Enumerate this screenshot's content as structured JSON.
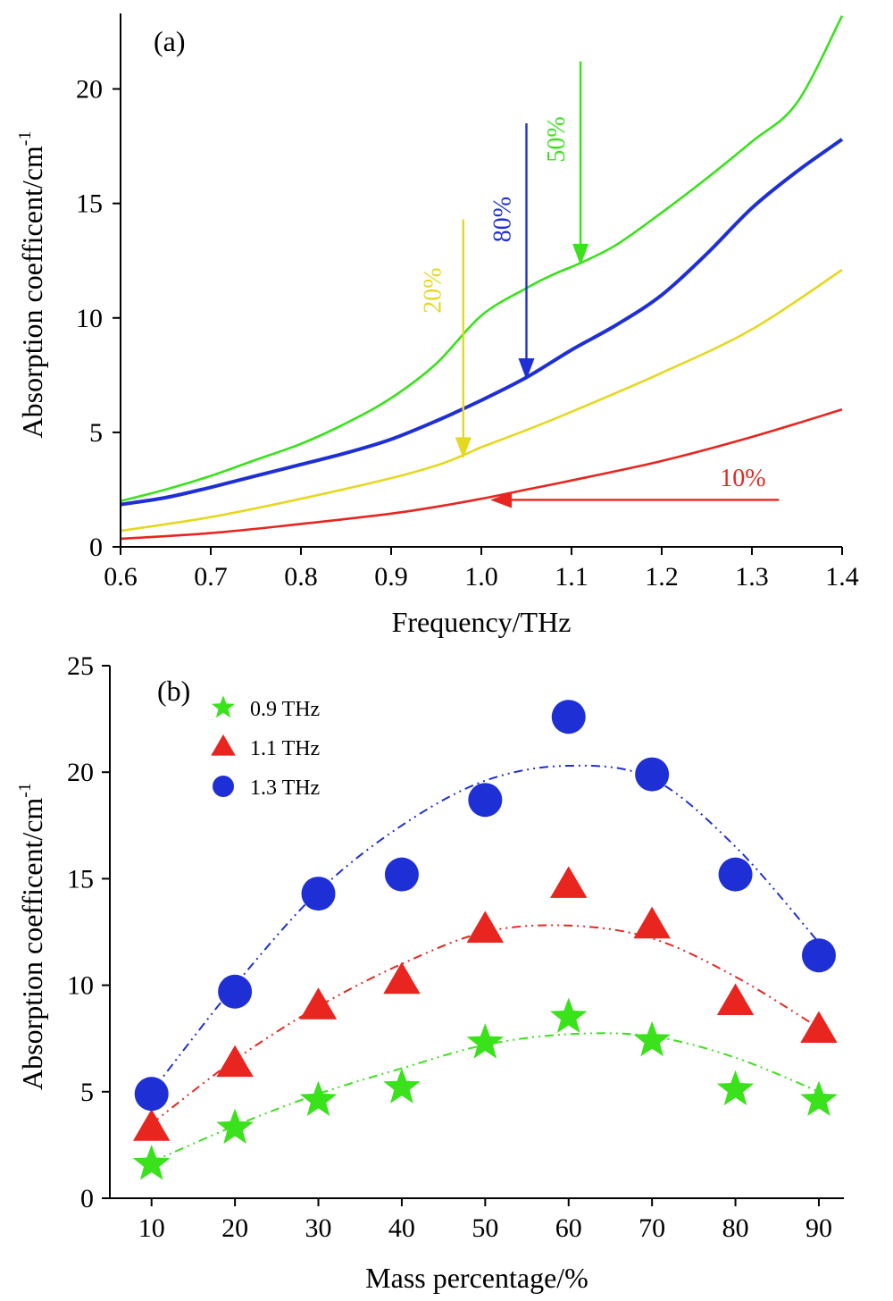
{
  "chart_data": [
    {
      "panel_label": "(a)",
      "type": "line",
      "xlabel": "Frequency/THz",
      "ylabel": "Absorption coefficent/cm",
      "ylabel_superscript": "-1",
      "xlim": [
        0.6,
        1.4
      ],
      "ylim": [
        0,
        23.3
      ],
      "xticks": [
        "0.6",
        "0.7",
        "0.8",
        "0.9",
        "1.0",
        "1.1",
        "1.2",
        "1.3",
        "1.4"
      ],
      "yticks": [
        "0",
        "5",
        "10",
        "15",
        "20"
      ],
      "grid": false,
      "series": [
        {
          "name": "10%",
          "color": "#e8251f",
          "x": [
            0.6,
            0.7,
            0.8,
            0.9,
            0.95,
            1.0,
            1.05,
            1.1,
            1.2,
            1.3,
            1.4
          ],
          "y": [
            0.35,
            0.6,
            1.0,
            1.45,
            1.75,
            2.1,
            2.5,
            2.9,
            3.75,
            4.8,
            6.0
          ]
        },
        {
          "name": "20%",
          "color": "#e5d820",
          "x": [
            0.6,
            0.7,
            0.8,
            0.9,
            0.95,
            0.98,
            1.0,
            1.05,
            1.1,
            1.2,
            1.3,
            1.4
          ],
          "y": [
            0.7,
            1.3,
            2.1,
            3.0,
            3.55,
            4.0,
            4.35,
            5.1,
            5.9,
            7.6,
            9.5,
            12.1
          ]
        },
        {
          "name": "50%",
          "color": "#39e21b",
          "x": [
            0.6,
            0.65,
            0.7,
            0.75,
            0.8,
            0.85,
            0.9,
            0.95,
            1.0,
            1.05,
            1.08,
            1.11,
            1.15,
            1.2,
            1.25,
            1.3,
            1.35,
            1.4
          ],
          "y": [
            2.0,
            2.5,
            3.1,
            3.8,
            4.5,
            5.4,
            6.5,
            8.0,
            10.1,
            11.3,
            11.9,
            12.4,
            13.2,
            14.6,
            16.1,
            17.7,
            19.4,
            23.2
          ]
        },
        {
          "name": "80%",
          "color": "#1f2fd6",
          "x": [
            0.6,
            0.65,
            0.7,
            0.75,
            0.8,
            0.85,
            0.9,
            0.95,
            1.0,
            1.05,
            1.1,
            1.15,
            1.2,
            1.25,
            1.3,
            1.35,
            1.4
          ],
          "y": [
            1.85,
            2.15,
            2.6,
            3.1,
            3.6,
            4.1,
            4.7,
            5.5,
            6.4,
            7.4,
            8.6,
            9.7,
            11.0,
            12.8,
            14.8,
            16.4,
            17.8
          ]
        }
      ],
      "annotations": [
        {
          "text": "10%",
          "color": "#e8251f",
          "arrow_from": [
            1.33,
            2.05
          ],
          "arrow_to": [
            1.01,
            2.05
          ],
          "label_at": [
            1.29,
            2.65
          ],
          "orientation": "horizontal"
        },
        {
          "text": "20%",
          "color": "#e5d820",
          "arrow_from": [
            0.98,
            14.3
          ],
          "arrow_to": [
            0.98,
            3.85
          ],
          "label_at": [
            0.955,
            11.2
          ],
          "orientation": "vertical"
        },
        {
          "text": "80%",
          "color": "#1f2fd6",
          "arrow_from": [
            1.05,
            18.5
          ],
          "arrow_to": [
            1.05,
            7.3
          ],
          "label_at": [
            1.032,
            14.3
          ],
          "orientation": "vertical"
        },
        {
          "text": "50%",
          "color": "#39e21b",
          "arrow_from": [
            1.11,
            21.2
          ],
          "arrow_to": [
            1.11,
            12.3
          ],
          "label_at": [
            1.092,
            17.8
          ],
          "orientation": "vertical"
        }
      ]
    },
    {
      "panel_label": "(b)",
      "type": "scatter",
      "xlabel": "Mass percentage/%",
      "ylabel": "Absorption coefficent/cm",
      "ylabel_superscript": "-1",
      "xlim": [
        5,
        93
      ],
      "ylim": [
        0,
        25
      ],
      "x": [
        10,
        20,
        30,
        40,
        50,
        60,
        70,
        80,
        90
      ],
      "xticks": [
        "10",
        "20",
        "30",
        "40",
        "50",
        "60",
        "70",
        "80",
        "90"
      ],
      "yticks": [
        "0",
        "5",
        "10",
        "15",
        "20",
        "25"
      ],
      "grid": false,
      "legend_position": "top-left",
      "series": [
        {
          "name": "0.9 THz",
          "marker": "star",
          "color": "#39e21b",
          "values": [
            1.6,
            3.3,
            4.6,
            5.2,
            7.3,
            8.5,
            7.4,
            5.1,
            4.6
          ],
          "fit": [
            1.7,
            3.4,
            4.9,
            6.1,
            7.2,
            7.7,
            7.6,
            6.6,
            5.0
          ]
        },
        {
          "name": "1.1 THz",
          "marker": "triangle",
          "color": "#e8251f",
          "values": [
            3.3,
            6.3,
            9.0,
            10.2,
            12.6,
            14.7,
            12.8,
            9.2,
            7.9
          ],
          "fit": [
            3.5,
            6.5,
            9.0,
            11.0,
            12.5,
            12.8,
            12.2,
            10.4,
            8.0
          ]
        },
        {
          "name": "1.3 THz",
          "marker": "circle",
          "color": "#1f2fd6",
          "values": [
            4.9,
            9.7,
            14.3,
            15.2,
            18.7,
            22.6,
            19.9,
            15.2,
            11.4
          ],
          "fit": [
            5.0,
            10.0,
            14.4,
            17.5,
            19.6,
            20.3,
            19.7,
            16.5,
            12.0
          ]
        }
      ]
    }
  ]
}
